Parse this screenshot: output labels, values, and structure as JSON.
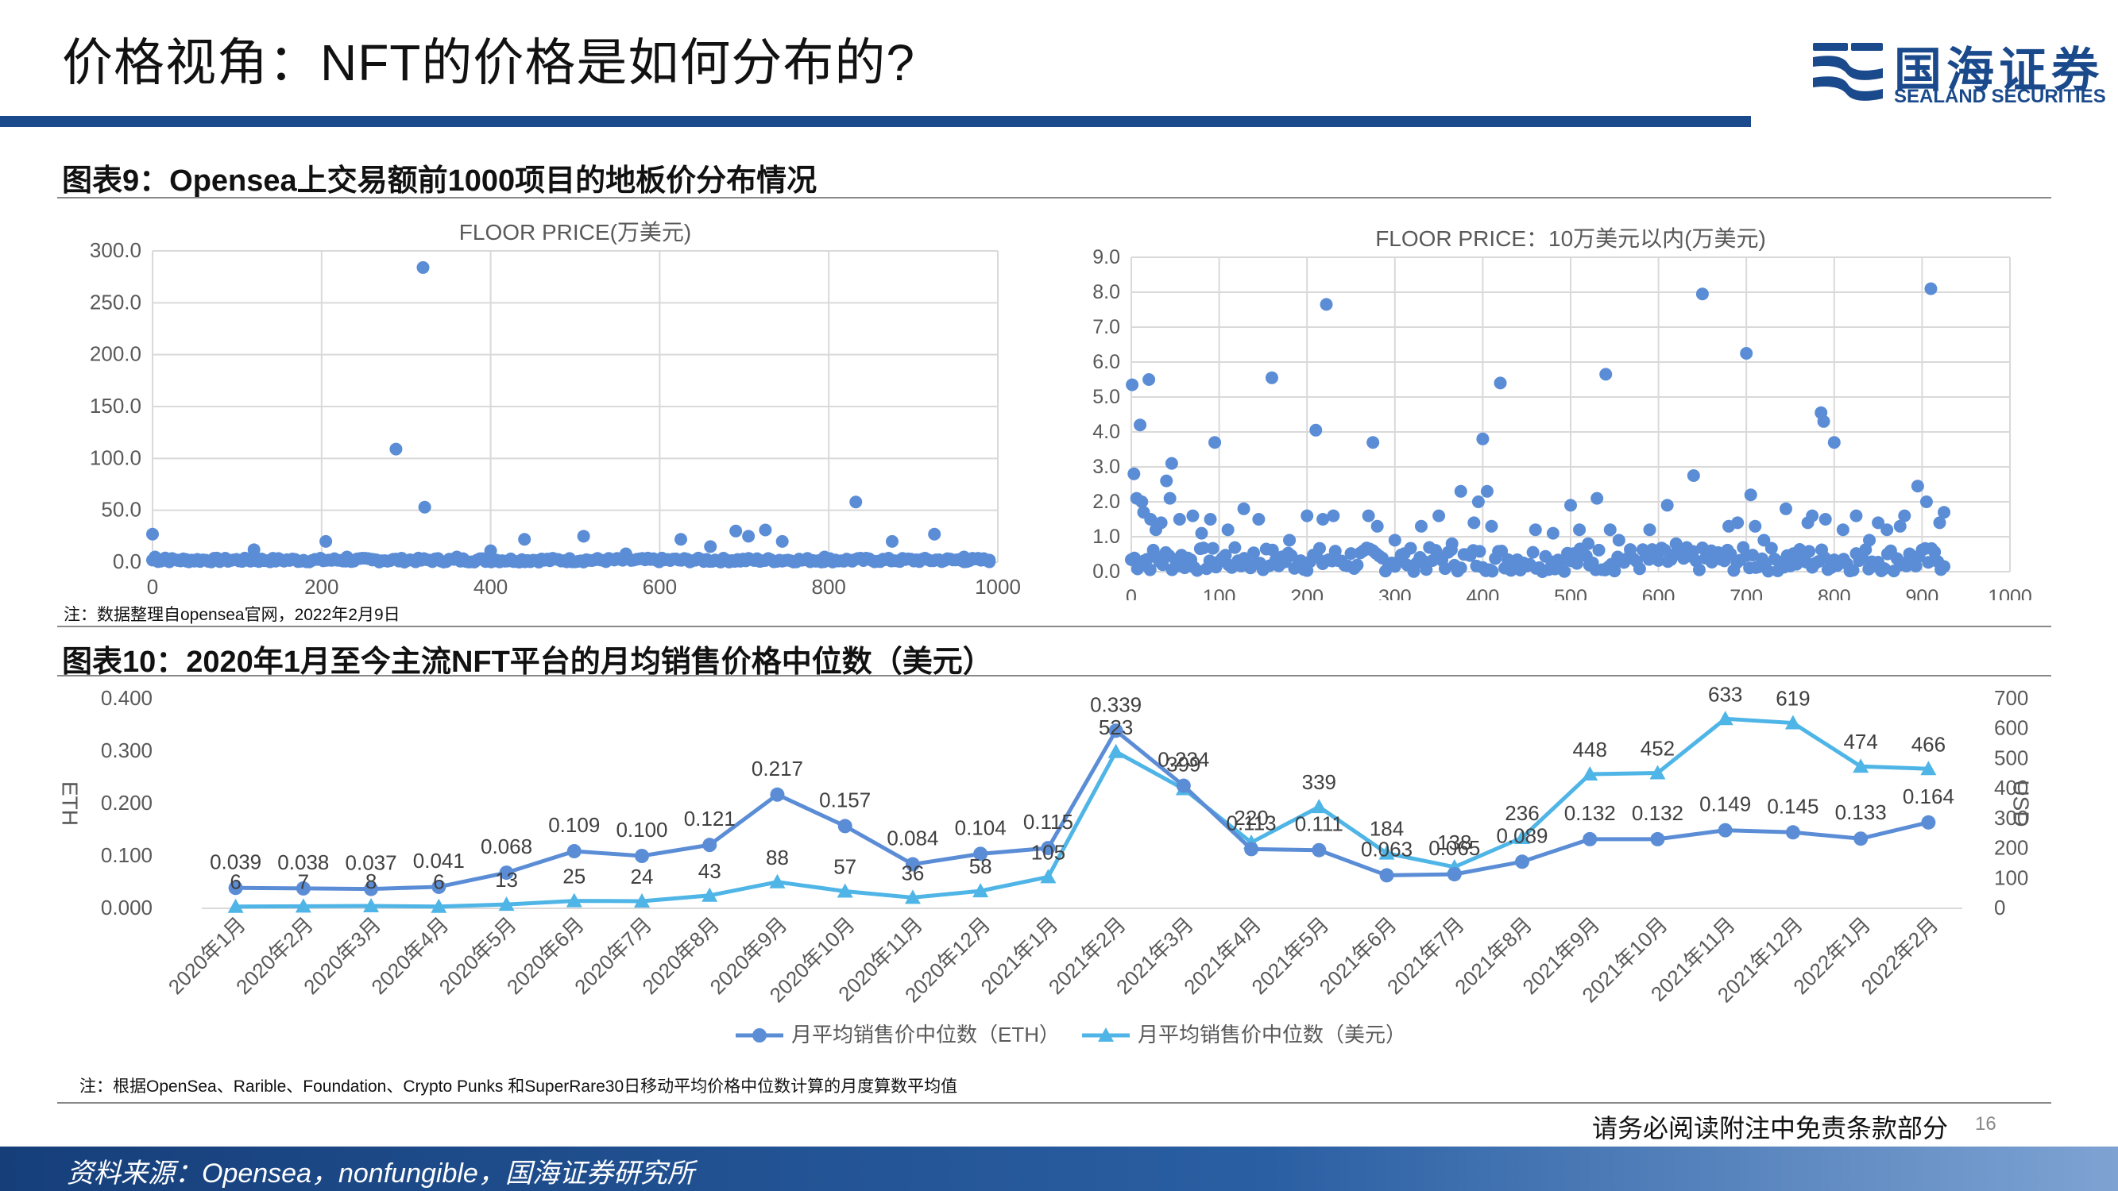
{
  "header": {
    "title": "价格视角：NFT的价格是如何分布的?",
    "logo_cn": "国海证券",
    "logo_en": "SEALAND SECURITIES"
  },
  "fig9": {
    "heading": "图表9：Opensea上交易额前1000项目的地板价分布情况",
    "note": "注：数据整理自opensea官网，2022年2月9日"
  },
  "fig10": {
    "heading": "图表10：2020年1月至今主流NFT平台的月均销售价格中位数（美元）",
    "note": "注：根据OpenSea、Rarible、Foundation、Crypto Punks 和SuperRare30日移动平均价格中位数计算的月度算数平均值"
  },
  "footer": {
    "disclaimer": "请务必阅读附注中免责条款部分",
    "page": "16",
    "source": "资料来源：Opensea，nonfungible，国海证券研究所"
  },
  "colors": {
    "brand": "#1a4a8c",
    "eth": "#5b8dd6",
    "usd": "#4fb5e6",
    "grid": "#d9d9d9"
  },
  "chart_data": [
    {
      "type": "scatter",
      "title": "FLOOR PRICE(万美元)",
      "xlim": [
        0,
        1000
      ],
      "ylim": [
        0,
        300
      ],
      "x_ticks": [
        0,
        200,
        400,
        600,
        800,
        1000
      ],
      "y_ticks": [
        "0.0",
        "50.0",
        "100.0",
        "150.0",
        "200.0",
        "250.0",
        "300.0"
      ],
      "grid": true,
      "color": "#5b8dd6",
      "points": [
        [
          0,
          27
        ],
        [
          3,
          5
        ],
        [
          8,
          2
        ],
        [
          15,
          4
        ],
        [
          22,
          3
        ],
        [
          30,
          2
        ],
        [
          40,
          1
        ],
        [
          55,
          2
        ],
        [
          75,
          3
        ],
        [
          120,
          12
        ],
        [
          150,
          3
        ],
        [
          205,
          20
        ],
        [
          215,
          3
        ],
        [
          230,
          5
        ],
        [
          260,
          2
        ],
        [
          288,
          109
        ],
        [
          320,
          284
        ],
        [
          322,
          53
        ],
        [
          360,
          5
        ],
        [
          400,
          11
        ],
        [
          440,
          22
        ],
        [
          470,
          3
        ],
        [
          510,
          25
        ],
        [
          560,
          8
        ],
        [
          625,
          22
        ],
        [
          660,
          15
        ],
        [
          690,
          30
        ],
        [
          705,
          25
        ],
        [
          725,
          31
        ],
        [
          745,
          20
        ],
        [
          795,
          5
        ],
        [
          832,
          58
        ],
        [
          875,
          20
        ],
        [
          925,
          27
        ],
        [
          960,
          5
        ],
        [
          990,
          2
        ]
      ],
      "dense_band": {
        "x_range": [
          0,
          990
        ],
        "count": 300,
        "y_max": 4
      }
    },
    {
      "type": "scatter",
      "title": "FLOOR PRICE：10万美元以内(万美元)",
      "xlim": [
        0,
        1000
      ],
      "ylim": [
        0,
        9
      ],
      "x_ticks": [
        0,
        100,
        200,
        300,
        400,
        500,
        600,
        700,
        800,
        900,
        1000
      ],
      "y_ticks": [
        "0.0",
        "1.0",
        "2.0",
        "3.0",
        "4.0",
        "5.0",
        "6.0",
        "7.0",
        "8.0",
        "9.0"
      ],
      "grid": true,
      "color": "#5b8dd6",
      "points": [
        [
          1,
          5.35
        ],
        [
          3,
          2.8
        ],
        [
          6,
          2.1
        ],
        [
          10,
          4.2
        ],
        [
          12,
          2
        ],
        [
          14,
          1.7
        ],
        [
          20,
          5.5
        ],
        [
          22,
          1.5
        ],
        [
          28,
          1.2
        ],
        [
          34,
          1.4
        ],
        [
          40,
          2.6
        ],
        [
          44,
          2.1
        ],
        [
          46,
          3.1
        ],
        [
          55,
          1.5
        ],
        [
          70,
          1.6
        ],
        [
          80,
          1.1
        ],
        [
          90,
          1.5
        ],
        [
          95,
          3.7
        ],
        [
          110,
          1.2
        ],
        [
          128,
          1.8
        ],
        [
          145,
          1.5
        ],
        [
          160,
          5.55
        ],
        [
          180,
          0.9
        ],
        [
          200,
          1.6
        ],
        [
          210,
          4.05
        ],
        [
          222,
          7.65
        ],
        [
          218,
          1.5
        ],
        [
          230,
          1.6
        ],
        [
          270,
          1.6
        ],
        [
          275,
          3.7
        ],
        [
          280,
          1.3
        ],
        [
          300,
          0.9
        ],
        [
          330,
          1.3
        ],
        [
          350,
          1.6
        ],
        [
          365,
          0.8
        ],
        [
          375,
          2.3
        ],
        [
          390,
          1.4
        ],
        [
          395,
          2
        ],
        [
          400,
          3.8
        ],
        [
          405,
          2.3
        ],
        [
          410,
          1.3
        ],
        [
          420,
          5.4
        ],
        [
          460,
          1.2
        ],
        [
          480,
          1.1
        ],
        [
          500,
          1.9
        ],
        [
          510,
          1.2
        ],
        [
          520,
          0.8
        ],
        [
          530,
          2.1
        ],
        [
          540,
          5.65
        ],
        [
          545,
          1.2
        ],
        [
          555,
          0.9
        ],
        [
          590,
          1.2
        ],
        [
          610,
          1.9
        ],
        [
          620,
          0.8
        ],
        [
          640,
          2.75
        ],
        [
          650,
          7.95
        ],
        [
          660,
          0.6
        ],
        [
          680,
          1.3
        ],
        [
          690,
          1.4
        ],
        [
          700,
          6.25
        ],
        [
          705,
          2.2
        ],
        [
          710,
          1.3
        ],
        [
          720,
          0.9
        ],
        [
          745,
          1.8
        ],
        [
          770,
          1.4
        ],
        [
          775,
          1.6
        ],
        [
          785,
          4.55
        ],
        [
          788,
          4.3
        ],
        [
          790,
          1.5
        ],
        [
          800,
          3.7
        ],
        [
          810,
          1.2
        ],
        [
          825,
          1.6
        ],
        [
          840,
          0.9
        ],
        [
          850,
          1.4
        ],
        [
          860,
          1.2
        ],
        [
          875,
          1.3
        ],
        [
          880,
          1.6
        ],
        [
          895,
          2.45
        ],
        [
          905,
          2
        ],
        [
          910,
          8.1
        ],
        [
          920,
          1.4
        ],
        [
          925,
          1.7
        ]
      ],
      "dense_band": {
        "x_range": [
          0,
          925
        ],
        "count": 260,
        "y_max": 0.7
      }
    },
    {
      "type": "line",
      "title": "",
      "categories": [
        "2020年1月",
        "2020年2月",
        "2020年3月",
        "2020年4月",
        "2020年5月",
        "2020年6月",
        "2020年7月",
        "2020年8月",
        "2020年9月",
        "2020年10月",
        "2020年11月",
        "2020年12月",
        "2021年1月",
        "2021年2月",
        "2021年3月",
        "2021年4月",
        "2021年5月",
        "2021年6月",
        "2021年7月",
        "2021年8月",
        "2021年9月",
        "2021年10月",
        "2021年11月",
        "2021年12月",
        "2022年1月",
        "2022年2月"
      ],
      "ylabel": "ETH",
      "y2label": "USD",
      "ylim": [
        0,
        0.4
      ],
      "y2lim": [
        0,
        700
      ],
      "y_ticks": [
        "0.000",
        "0.100",
        "0.200",
        "0.300",
        "0.400"
      ],
      "y2_ticks": [
        "0",
        "100",
        "200",
        "300",
        "400",
        "500",
        "600",
        "700"
      ],
      "series": [
        {
          "name": "月平均销售价中位数（ETH）",
          "axis": "left",
          "color": "#5b8dd6",
          "marker": "circle",
          "values": [
            0.039,
            0.038,
            0.037,
            0.041,
            0.068,
            0.109,
            0.1,
            0.121,
            0.217,
            0.157,
            0.084,
            0.104,
            0.115,
            0.339,
            0.234,
            0.113,
            0.111,
            0.063,
            0.065,
            0.089,
            0.132,
            0.132,
            0.149,
            0.145,
            0.133,
            0.164
          ],
          "labels": [
            "0.039",
            "0.038",
            "0.037",
            "0.041",
            "0.068",
            "0.109",
            "0.100",
            "0.121",
            "0.217",
            "0.157",
            "0.084",
            "0.104",
            "0.115",
            "0.339",
            "0.234",
            "0.113",
            "0.111",
            "0.063",
            "0.065",
            "0.089",
            "0.132",
            "0.132",
            "0.149",
            "0.145",
            "0.133",
            "0.164"
          ]
        },
        {
          "name": "月平均销售价中位数（美元）",
          "axis": "right",
          "color": "#4fb5e6",
          "marker": "triangle",
          "values": [
            6,
            7,
            8,
            6,
            13,
            25,
            24,
            43,
            88,
            57,
            36,
            58,
            105,
            523,
            399,
            220,
            339,
            184,
            138,
            236,
            448,
            452,
            633,
            619,
            474,
            466
          ],
          "labels": [
            "6",
            "7",
            "8",
            "6",
            "13",
            "25",
            "24",
            "43",
            "88",
            "57",
            "36",
            "58",
            "105",
            "523",
            "399",
            "220",
            "339",
            "184",
            "138",
            "236",
            "448",
            "452",
            "633",
            "619",
            "474",
            "466"
          ]
        }
      ]
    }
  ]
}
